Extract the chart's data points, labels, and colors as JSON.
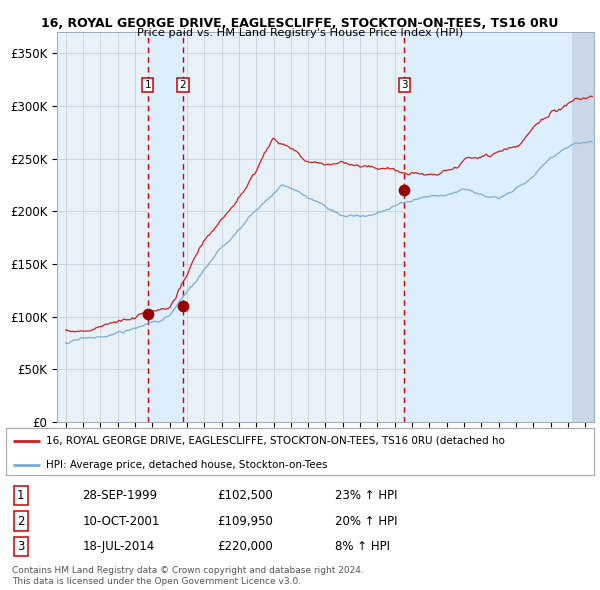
{
  "title1": "16, ROYAL GEORGE DRIVE, EAGLESCLIFFE, STOCKTON-ON-TEES, TS16 0RU",
  "title2": "Price paid vs. HM Land Registry's House Price Index (HPI)",
  "legend_label1": "16, ROYAL GEORGE DRIVE, EAGLESCLIFFE, STOCKTON-ON-TEES, TS16 0RU (detached ho",
  "legend_label2": "HPI: Average price, detached house, Stockton-on-Tees",
  "footer1": "Contains HM Land Registry data © Crown copyright and database right 2024.",
  "footer2": "This data is licensed under the Open Government Licence v3.0.",
  "transactions": [
    {
      "num": 1,
      "date": "28-SEP-1999",
      "price": 102500,
      "hpi_pct": "23%",
      "direction": "↑"
    },
    {
      "num": 2,
      "date": "10-OCT-2001",
      "price": 109950,
      "hpi_pct": "20%",
      "direction": "↑"
    },
    {
      "num": 3,
      "date": "18-JUL-2014",
      "price": 220000,
      "hpi_pct": "8%",
      "direction": "↑"
    }
  ],
  "transaction_dates_decimal": [
    1999.74,
    2001.77,
    2014.54
  ],
  "transaction_prices": [
    102500,
    109950,
    220000
  ],
  "hpi_color": "#7aadd4",
  "price_color": "#cc2222",
  "dot_color": "#990000",
  "vline_color": "#cc0000",
  "shade_color": "#ddeeff",
  "hatch_color": "#c8d8e8",
  "grid_color": "#c8d0dc",
  "bg_color": "#e8f0f8",
  "ylim": [
    0,
    370000
  ],
  "yticks": [
    0,
    50000,
    100000,
    150000,
    200000,
    250000,
    300000,
    350000
  ],
  "xlim_start": 1994.5,
  "xlim_end": 2025.5,
  "xticks": [
    1995,
    1996,
    1997,
    1998,
    1999,
    2000,
    2001,
    2002,
    2003,
    2004,
    2005,
    2006,
    2007,
    2008,
    2009,
    2010,
    2011,
    2012,
    2013,
    2014,
    2015,
    2016,
    2017,
    2018,
    2019,
    2020,
    2021,
    2022,
    2023,
    2024,
    2025
  ]
}
